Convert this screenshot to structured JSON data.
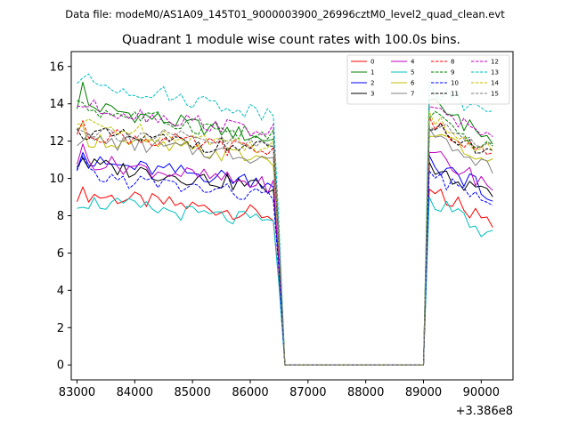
{
  "chart_data": {
    "type": "line",
    "suptitle": "Data file: modeM0/AS1A09_145T01_9000003900_26996cztM0_level2_quad_clean.evt",
    "title": "Quadrant 1 module wise count rates with 100.0s bins.",
    "xlabel": "",
    "ylabel": "",
    "x_offset_label": "+3.386e8",
    "xlim": [
      82900,
      90550
    ],
    "ylim": [
      -0.8,
      16.8
    ],
    "xticks": [
      83000,
      84000,
      85000,
      86000,
      87000,
      88000,
      89000,
      90000
    ],
    "yticks": [
      0,
      2,
      4,
      6,
      8,
      10,
      12,
      14,
      16
    ],
    "xtick_labels": [
      "83000",
      "84000",
      "85000",
      "86000",
      "87000",
      "88000",
      "89000",
      "90000"
    ],
    "ytick_labels": [
      "0",
      "2",
      "4",
      "6",
      "8",
      "10",
      "12",
      "14",
      "16"
    ],
    "grid": false,
    "legend": {
      "placement": "top-right",
      "columns": 4
    },
    "x_start": 83000,
    "x_step": 100,
    "gap_start": 86550,
    "gap_end": 88950,
    "seg1_end": 86450,
    "seg2_start": 89050,
    "series": [
      {
        "name": "0",
        "color": "#ff0000",
        "dash": false,
        "base1": 9.2,
        "slope1": -0.55,
        "start_spike": 0.0,
        "base2": 9.7,
        "slope2": -0.9
      },
      {
        "name": "1",
        "color": "#008000",
        "dash": false,
        "base1": 14.0,
        "slope1": -0.9,
        "start_spike": 1.0,
        "base2": 14.2,
        "slope2": -0.85
      },
      {
        "name": "2",
        "color": "#0000ff",
        "dash": false,
        "base1": 10.9,
        "slope1": -0.5,
        "start_spike": 0.9,
        "base2": 11.0,
        "slope2": -0.7
      },
      {
        "name": "3",
        "color": "#000000",
        "dash": false,
        "base1": 10.8,
        "slope1": -0.6,
        "start_spike": 0.4,
        "base2": 10.6,
        "slope2": -0.65
      },
      {
        "name": "4",
        "color": "#bf00bf",
        "dash": false,
        "base1": 11.0,
        "slope1": -0.65,
        "start_spike": 0.6,
        "base2": 11.4,
        "slope2": -0.7
      },
      {
        "name": "5",
        "color": "#00bfbf",
        "dash": false,
        "base1": 8.8,
        "slope1": -0.55,
        "start_spike": 0.0,
        "base2": 9.0,
        "slope2": -0.85
      },
      {
        "name": "6",
        "color": "#bfbf00",
        "dash": false,
        "base1": 12.2,
        "slope1": -0.55,
        "start_spike": 0.4,
        "base2": 12.6,
        "slope2": -0.7
      },
      {
        "name": "7",
        "color": "#808080",
        "dash": false,
        "base1": 12.1,
        "slope1": -0.45,
        "start_spike": 0.3,
        "base2": 12.4,
        "slope2": -0.7
      },
      {
        "name": "8",
        "color": "#ff0000",
        "dash": true,
        "base1": 12.5,
        "slope1": -0.5,
        "start_spike": 0.2,
        "base2": 13.1,
        "slope2": -0.75
      },
      {
        "name": "9",
        "color": "#008000",
        "dash": true,
        "base1": 13.8,
        "slope1": -0.75,
        "start_spike": 0.5,
        "base2": 13.4,
        "slope2": -0.7
      },
      {
        "name": "10",
        "color": "#0000ff",
        "dash": true,
        "base1": 10.2,
        "slope1": -0.55,
        "start_spike": 0.8,
        "base2": 10.4,
        "slope2": -0.75
      },
      {
        "name": "11",
        "color": "#000000",
        "dash": true,
        "base1": 12.4,
        "slope1": -0.4,
        "start_spike": 0.2,
        "base2": 12.9,
        "slope2": -0.6
      },
      {
        "name": "12",
        "color": "#bf00bf",
        "dash": true,
        "base1": 13.9,
        "slope1": -0.65,
        "start_spike": 0.2,
        "base2": 13.9,
        "slope2": -0.65
      },
      {
        "name": "13",
        "color": "#00bfbf",
        "dash": true,
        "base1": 15.3,
        "slope1": -0.85,
        "start_spike": 0.0,
        "base2": 14.8,
        "slope2": -0.5
      },
      {
        "name": "14",
        "color": "#bfbf00",
        "dash": true,
        "base1": 12.9,
        "slope1": -0.55,
        "start_spike": 0.1,
        "base2": 13.3,
        "slope2": -0.75
      },
      {
        "name": "15",
        "color": "#808080",
        "dash": true,
        "base1": 12.6,
        "slope1": -0.4,
        "start_spike": 0.3,
        "base2": 13.1,
        "slope2": -0.6
      }
    ]
  }
}
